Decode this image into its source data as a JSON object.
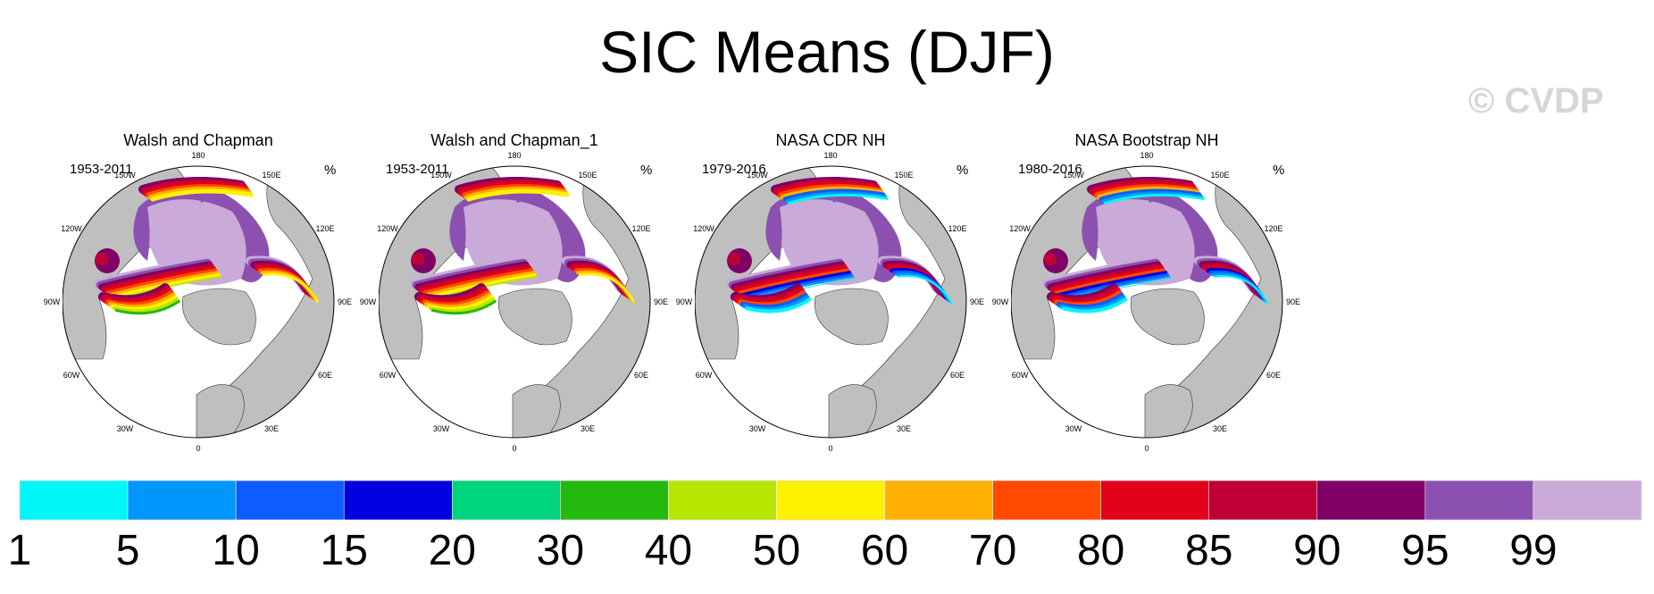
{
  "chart_data": {
    "type": "heatmap",
    "title": "SIC Means (DJF)",
    "watermark": "© CVDP",
    "units": "%",
    "panels": [
      {
        "title": "Walsh and Chapman",
        "period": "1953-2011"
      },
      {
        "title": "Walsh and Chapman_1",
        "period": "1953-2011"
      },
      {
        "title": "NASA CDR NH",
        "period": "1979-2016"
      },
      {
        "title": "NASA Bootstrap NH",
        "period": "1980-2016"
      }
    ],
    "longitude_labels": [
      "180",
      "150E",
      "120E",
      "90E",
      "60E",
      "30E",
      "0",
      "30W",
      "60W",
      "90W",
      "120W",
      "150W"
    ],
    "colorbar": {
      "levels": [
        "1",
        "5",
        "10",
        "15",
        "20",
        "30",
        "40",
        "50",
        "60",
        "70",
        "80",
        "85",
        "90",
        "95",
        "99"
      ],
      "colors": [
        "#00f7f7",
        "#0097fc",
        "#0d5cff",
        "#0000e0",
        "#00d47c",
        "#23b90e",
        "#b8e600",
        "#fff200",
        "#ffb000",
        "#ff4a00",
        "#e3001b",
        "#bf0036",
        "#7f0066",
        "#8c51b0",
        "#c9aad8"
      ]
    },
    "land_color": "#bfbfbf"
  }
}
